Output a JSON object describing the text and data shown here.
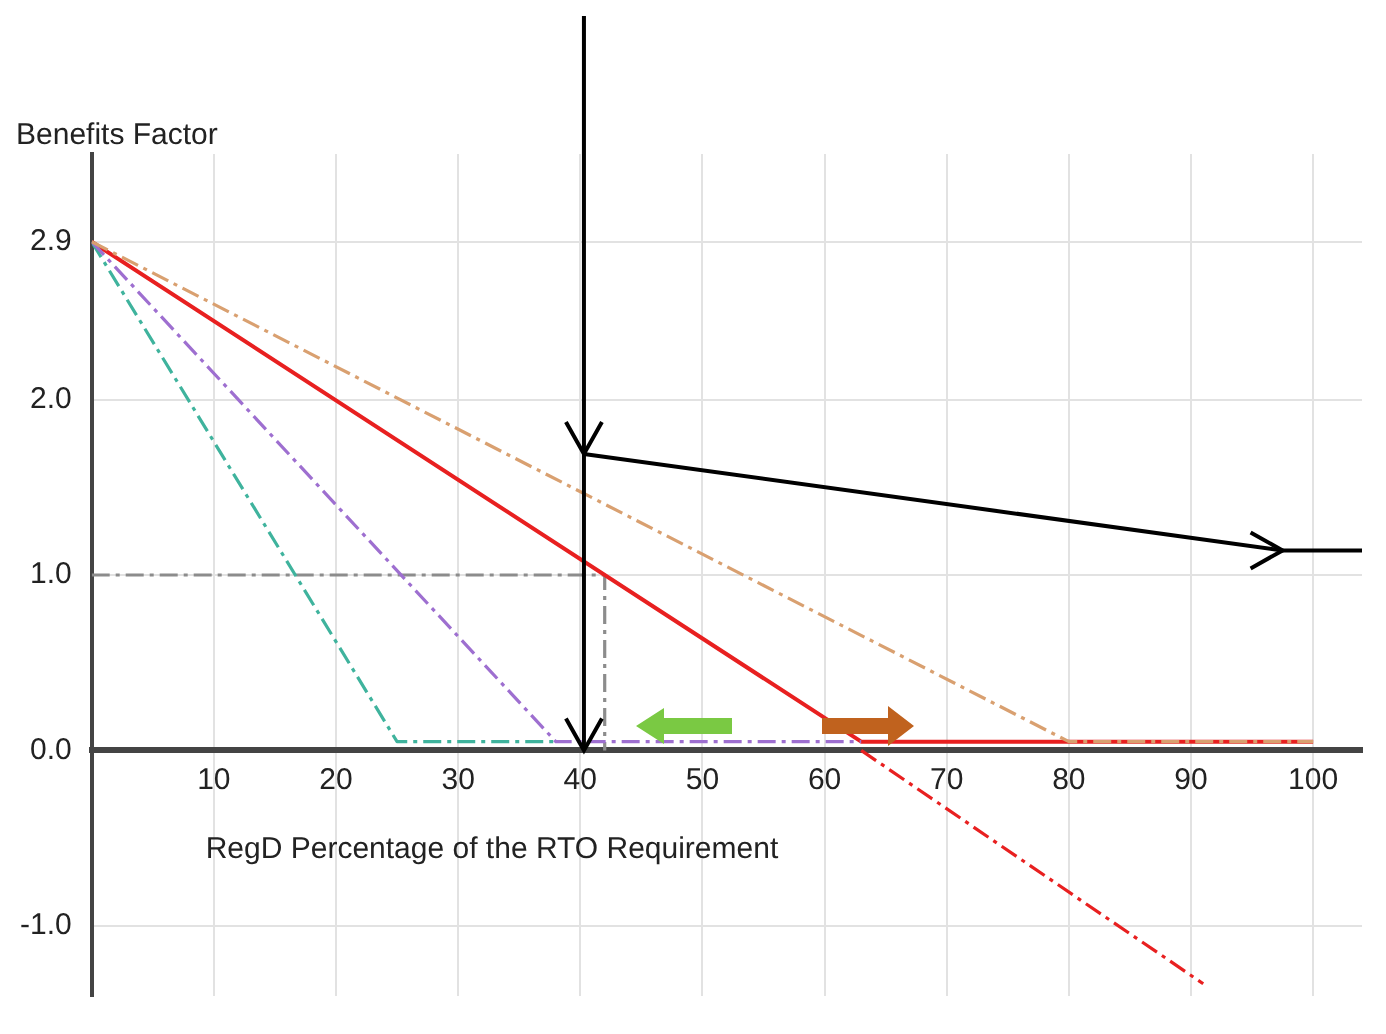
{
  "chart_data": {
    "type": "line",
    "ylabel": "Benefits Factor",
    "xlabel": "RegD Percentage of the RTO Requirement",
    "xlim": [
      0,
      104
    ],
    "xticks": [
      10,
      20,
      30,
      40,
      50,
      60,
      70,
      80,
      90,
      100
    ],
    "ylim": [
      -1.4,
      3.4
    ],
    "yticks": [
      {
        "value": -1,
        "label": "-1.0"
      },
      {
        "value": 0,
        "label": "0.0"
      },
      {
        "value": 1,
        "label": "1.0"
      },
      {
        "value": 2,
        "label": "2.0"
      },
      {
        "value": 2.9,
        "label": "2.9"
      }
    ],
    "grid": true,
    "legend": false,
    "marker": "none",
    "ref_lines": [
      {
        "axis": "x",
        "value": 40.3,
        "color": "#000000"
      }
    ],
    "series": [
      {
        "color": "#d9a070",
        "x": [
          0,
          80,
          100
        ],
        "values": [
          2.9,
          0.05,
          0.05
        ],
        "line_style": "dashed"
      },
      {
        "color": "#9e6fd0",
        "x": [
          0,
          38,
          63
        ],
        "values": [
          2.9,
          0.05,
          0.05
        ],
        "line_style": "dashed"
      },
      {
        "color": "#3fb39d",
        "x": [
          0,
          25,
          38
        ],
        "values": [
          2.9,
          0.05,
          0.05
        ],
        "line_style": "dashed"
      },
      {
        "color": "#e82020",
        "x": [
          0,
          63,
          100
        ],
        "values": [
          2.9,
          0.05,
          0.05
        ],
        "line_style": "solid"
      },
      {
        "color": "#e82020",
        "x": [
          63,
          91
        ],
        "values": [
          0,
          -1.33
        ],
        "line_style": "dashed"
      },
      {
        "color": "#8c8c8c",
        "x": [
          0,
          42,
          42
        ],
        "values": [
          1,
          1,
          0
        ],
        "line_style": "dashed"
      },
      {
        "color": "#000000",
        "x": [
          40.3,
          97.5,
          104
        ],
        "values": [
          1.69,
          1.14,
          1.14
        ],
        "line_style": "solid"
      }
    ]
  }
}
